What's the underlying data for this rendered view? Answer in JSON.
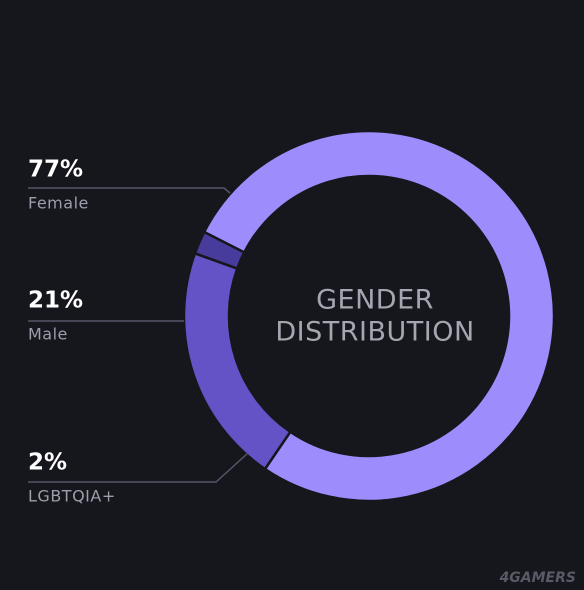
{
  "chart_data": {
    "type": "donut",
    "title": [
      "GENDER",
      "DISTRIBUTION"
    ],
    "categories": [
      "Female",
      "Male",
      "LGBTQIA+"
    ],
    "values": [
      77,
      21,
      2
    ],
    "value_labels": [
      "77%",
      "21%",
      "2%"
    ],
    "colors": [
      "#9d8dfc",
      "#6453c6",
      "#473b9c"
    ],
    "watermark": "4GAMERS"
  }
}
